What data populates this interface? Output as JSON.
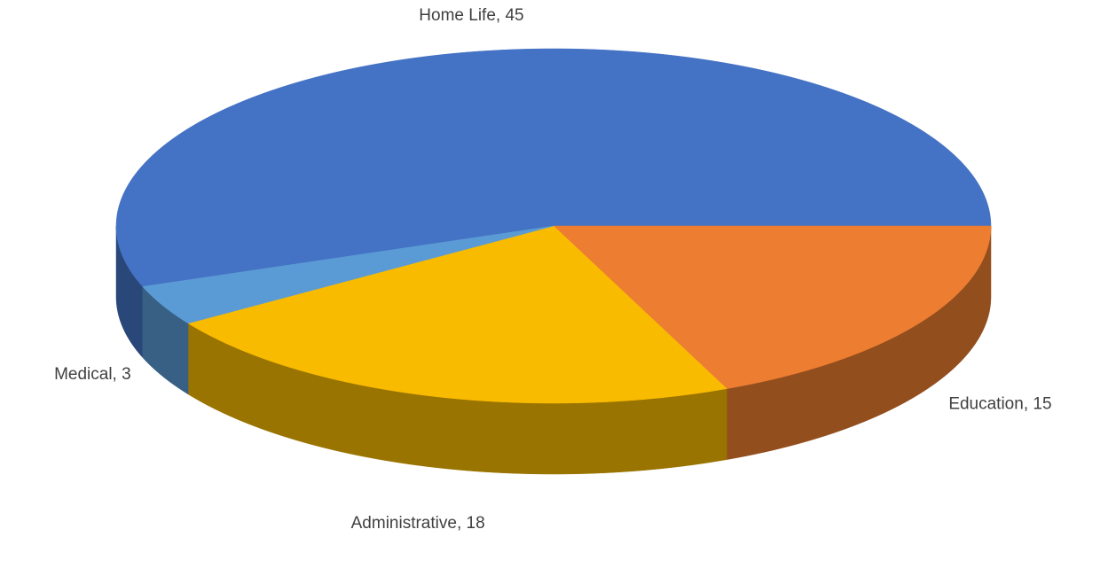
{
  "chart_data": {
    "type": "pie3d",
    "values": [
      45,
      15,
      18,
      3
    ],
    "value_labels": [
      "Home Life, 45",
      "Education, 15",
      "Administrative, 18",
      "Medical, 3"
    ],
    "colors": [
      "#4472c4",
      "#ed7d31",
      "#f9bb00",
      "#5b9bd5"
    ]
  }
}
